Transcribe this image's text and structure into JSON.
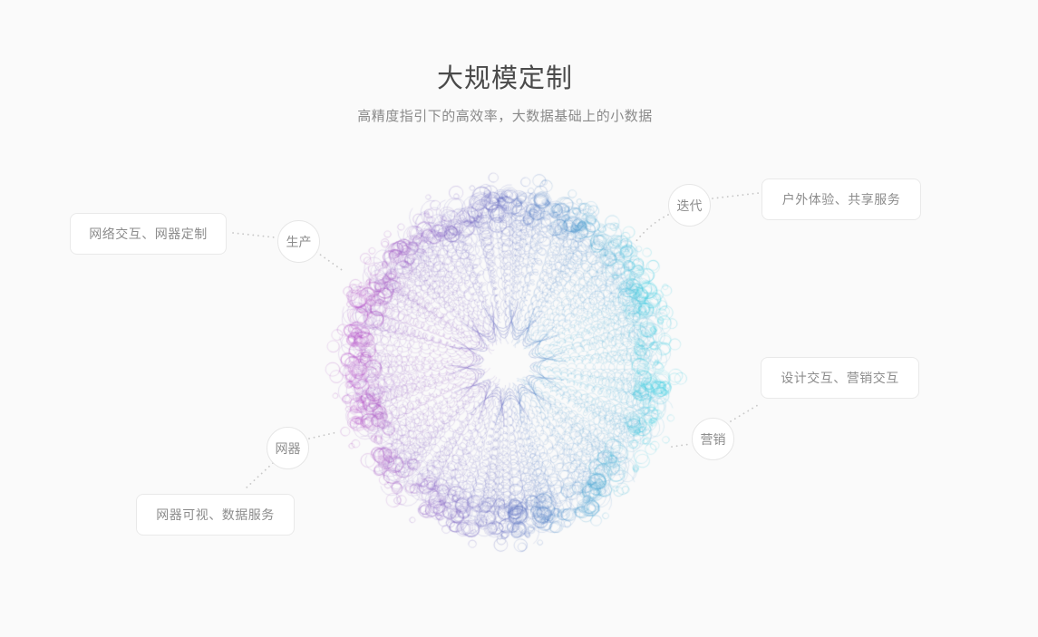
{
  "header": {
    "title": "大规模定制",
    "subtitle": "高精度指引下的高效率，大数据基础上的小数据"
  },
  "diagram": {
    "nodes": [
      {
        "id": "production",
        "label": "生产"
      },
      {
        "id": "iteration",
        "label": "迭代"
      },
      {
        "id": "device",
        "label": "网器"
      },
      {
        "id": "marketing",
        "label": "营销"
      }
    ],
    "cards": [
      {
        "id": "network",
        "text": "网络交互、网器定制"
      },
      {
        "id": "outdoor",
        "text": "户外体验、共享服务"
      },
      {
        "id": "visual",
        "text": "网器可视、数据服务"
      },
      {
        "id": "design",
        "text": "设计交互、营销交互"
      }
    ],
    "sphere_palette": {
      "left": "#b558c8",
      "mid": "#5f6cbf",
      "right": "#45d0e2"
    }
  },
  "colors": {
    "background": "#fafafa",
    "card_border": "#e9e9e9",
    "connector": "#c9c9c9",
    "title_text": "#4a4a4a",
    "secondary_text": "#8a8a8a"
  }
}
